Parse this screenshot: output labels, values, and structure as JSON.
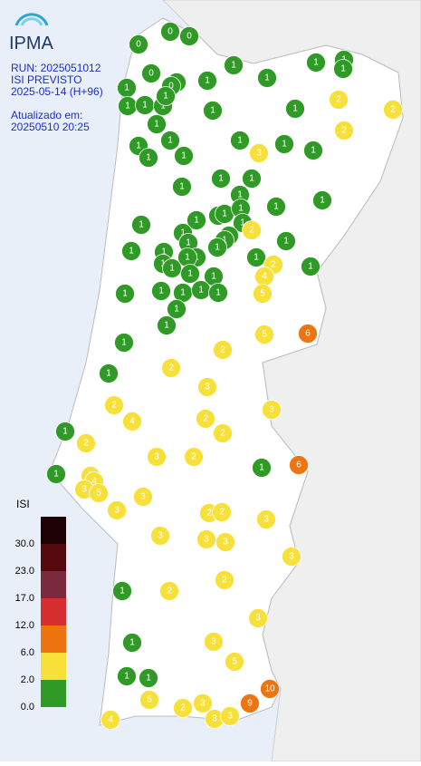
{
  "header": {
    "logo": "IPMA",
    "run": "RUN: 2025051012",
    "product": "ISI PREVISTO",
    "forecast": "2025-05-14 (H+96)",
    "updated_label": "Atualizado em:",
    "updated": "20250510 20:25"
  },
  "legend": {
    "title": "ISI",
    "thresholds": [
      {
        "value": 0,
        "label": "0.0"
      },
      {
        "value": 2,
        "label": "2.0"
      },
      {
        "value": 6,
        "label": "6.0"
      },
      {
        "value": 12,
        "label": "12.0"
      },
      {
        "value": 17,
        "label": "17.0"
      },
      {
        "value": 23,
        "label": "23.0"
      },
      {
        "value": 30,
        "label": "30.0"
      }
    ],
    "colors": [
      "#2f9a26",
      "#f8e03a",
      "#ee7410",
      "#d62e2e",
      "#7a2a3c",
      "#560a0e",
      "#1e0206"
    ]
  },
  "markers": {
    "values": [
      0,
      0,
      0,
      0,
      0,
      0,
      1,
      1,
      1,
      1,
      1,
      1,
      1,
      1,
      1,
      1,
      1,
      1,
      1,
      1,
      2,
      2,
      2,
      1,
      1,
      1,
      1,
      1,
      3,
      1,
      1,
      1,
      1,
      1,
      1,
      1,
      1,
      1,
      1,
      1,
      1,
      1,
      1,
      2,
      1,
      1,
      1,
      1,
      1,
      1,
      1,
      1,
      1,
      1,
      1,
      1,
      1,
      2,
      1,
      4,
      5,
      1,
      1,
      1,
      1,
      1,
      1,
      1,
      1,
      1,
      1,
      5,
      6,
      2,
      2,
      1,
      3,
      2,
      4,
      3,
      2,
      2,
      1,
      2,
      3,
      2,
      1,
      6,
      1,
      5,
      4,
      3,
      5,
      3,
      3,
      2,
      2,
      3,
      3,
      3,
      3,
      3,
      2,
      2,
      1,
      3,
      1,
      3,
      5,
      1,
      1,
      10,
      5,
      3,
      2,
      9,
      3,
      3,
      4
    ]
  }
}
